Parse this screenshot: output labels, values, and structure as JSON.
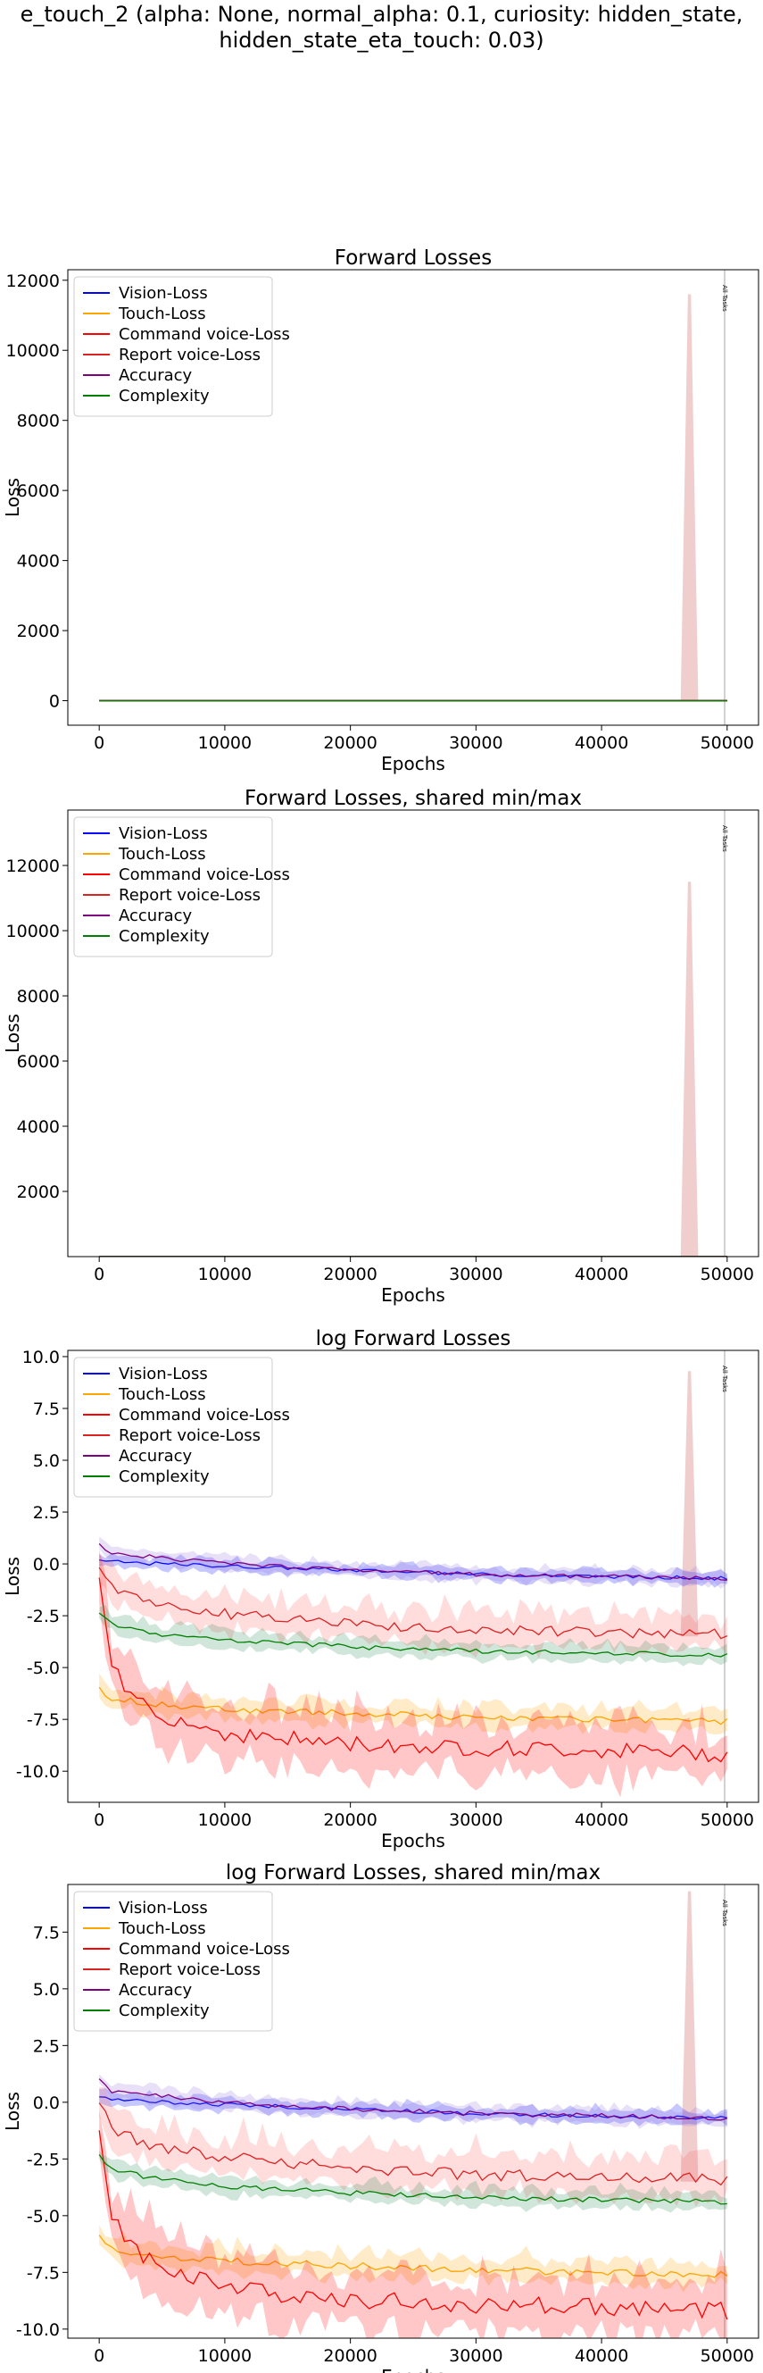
{
  "figure_title": "e_touch_2 (alpha: None, normal_alpha: 0.1, curiosity: hidden_state,\nhidden_state_eta_touch: 0.03)",
  "chart_data": [
    {
      "type": "line",
      "title": "Forward Losses",
      "xlabel": "Epochs",
      "ylabel": "Loss",
      "xlim": [
        -2500,
        52500
      ],
      "ylim": [
        -700,
        12300
      ],
      "xticks": [
        0,
        10000,
        20000,
        30000,
        40000,
        50000
      ],
      "yticks": [
        0,
        2000,
        4000,
        6000,
        8000,
        10000,
        12000
      ],
      "log": false,
      "legend": "upper-left",
      "annotation": {
        "x": 49800,
        "text": "All Tasks"
      },
      "spike": {
        "x": 47000,
        "y": 11600
      }
    },
    {
      "type": "line",
      "title": "Forward Losses, shared min/max",
      "xlabel": "Epochs",
      "ylabel": "Loss",
      "xlim": [
        -2500,
        52500
      ],
      "ylim": [
        0,
        13700
      ],
      "xticks": [
        0,
        10000,
        20000,
        30000,
        40000,
        50000
      ],
      "yticks": [
        2000,
        4000,
        6000,
        8000,
        10000,
        12000
      ],
      "log": false,
      "legend": "upper-left",
      "annotation": {
        "x": 49800,
        "text": "All Tasks"
      },
      "spike": {
        "x": 47000,
        "y": 11500
      }
    },
    {
      "type": "line",
      "title": "log Forward Losses",
      "xlabel": "Epochs",
      "ylabel": "Loss",
      "xlim": [
        -2500,
        52500
      ],
      "ylim": [
        -11.5,
        10.3
      ],
      "xticks": [
        0,
        10000,
        20000,
        30000,
        40000,
        50000
      ],
      "yticks": [
        -10.0,
        -7.5,
        -5.0,
        -2.5,
        0.0,
        2.5,
        5.0,
        7.5,
        10.0
      ],
      "log": true,
      "legend": "upper-left",
      "annotation": {
        "x": 49800,
        "text": "All Tasks"
      },
      "spike": {
        "x": 47000,
        "y": 9.3
      }
    },
    {
      "type": "line",
      "title": "log Forward Losses, shared min/max",
      "xlabel": "Epochs",
      "ylabel": "Loss",
      "xlim": [
        -2500,
        52500
      ],
      "ylim": [
        -10.4,
        9.6
      ],
      "xticks": [
        0,
        10000,
        20000,
        30000,
        40000,
        50000
      ],
      "yticks": [
        -10.0,
        -7.5,
        -5.0,
        -2.5,
        0.0,
        2.5,
        5.0,
        7.5
      ],
      "log": true,
      "legend": "upper-left",
      "annotation": {
        "x": 49800,
        "text": "All Tasks"
      },
      "spike": {
        "x": 47000,
        "y": 9.3
      }
    }
  ],
  "series": [
    {
      "name": "Vision-Loss",
      "color": "#0000ff",
      "fill": "#0000ff",
      "x": [
        0,
        1000,
        5000,
        10000,
        20000,
        30000,
        40000,
        50000
      ],
      "log_values": [
        0.2,
        0.1,
        0.0,
        -0.1,
        -0.3,
        -0.5,
        -0.6,
        -0.7
      ],
      "log_band": 0.35,
      "linear_value": 1.0
    },
    {
      "name": "Touch-Loss",
      "color": "#ffa500",
      "fill": "#ffa500",
      "x": [
        0,
        1000,
        5000,
        10000,
        20000,
        30000,
        40000,
        50000
      ],
      "log_values": [
        -6.0,
        -6.5,
        -6.8,
        -7.0,
        -7.2,
        -7.4,
        -7.5,
        -7.6
      ],
      "log_band": 0.6,
      "linear_value": 0.002
    },
    {
      "name": "Command voice-Loss",
      "color": "#ff0000",
      "fill": "#ff0000",
      "x": [
        0,
        1000,
        3000,
        5000,
        10000,
        20000,
        30000,
        40000,
        50000
      ],
      "log_values": [
        -1.0,
        -5.0,
        -6.5,
        -7.3,
        -8.2,
        -8.7,
        -8.9,
        -9.0,
        -9.2
      ],
      "log_band": 1.6,
      "linear_value": 0.001
    },
    {
      "name": "Report voice-Loss",
      "color": "#dd2222",
      "fill": "#ff6666",
      "x": [
        0,
        1000,
        3000,
        5000,
        10000,
        20000,
        30000,
        40000,
        50000
      ],
      "log_values": [
        0.0,
        -1.2,
        -1.7,
        -2.0,
        -2.4,
        -2.9,
        -3.2,
        -3.3,
        -3.4
      ],
      "log_band": 1.0,
      "linear_value": 0.1
    },
    {
      "name": "Accuracy",
      "color": "#800080",
      "fill": "#9370db",
      "x": [
        0,
        1000,
        5000,
        10000,
        20000,
        30000,
        40000,
        50000
      ],
      "log_values": [
        1.0,
        0.5,
        0.3,
        0.0,
        -0.3,
        -0.5,
        -0.6,
        -0.7
      ],
      "log_band": 0.4,
      "linear_value": 1.5
    },
    {
      "name": "Complexity",
      "color": "#008000",
      "fill": "#2e8b57",
      "x": [
        0,
        1000,
        3000,
        5000,
        10000,
        20000,
        30000,
        40000,
        50000
      ],
      "log_values": [
        -2.4,
        -2.9,
        -3.2,
        -3.4,
        -3.7,
        -4.0,
        -4.2,
        -4.3,
        -4.4
      ],
      "log_band": 0.45,
      "linear_value": 0.05
    }
  ]
}
